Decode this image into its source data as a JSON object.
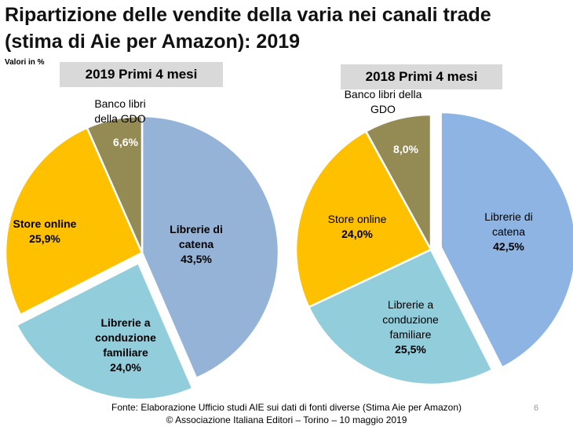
{
  "title_line1": "Ripartizione delle vendite della varia nei canali trade",
  "title_line2": "(stima di Aie per Amazon): 2019",
  "units_note": "Valori in %",
  "footer": {
    "source": "Fonte: Elaborazione Ufficio studi AIE sui dati di fonti diverse (Stima Aie per Amazon)",
    "copyright": "© Associazione Italiana Editori – Torino – 10 maggio 2019"
  },
  "page_number": "6",
  "chart_data": [
    {
      "type": "pie",
      "title": "2019 Primi 4 mesi",
      "slices": [
        {
          "label": "Librerie di catena",
          "value": 43.5,
          "value_label": "43,5%",
          "color": "#95b3d7"
        },
        {
          "label": "Librerie a conduzione familiare",
          "value": 24.0,
          "value_label": "24,0%",
          "color": "#92cddc",
          "exploded": true
        },
        {
          "label": "Store online",
          "value": 25.9,
          "value_label": "25,9%",
          "color": "#ffc000"
        },
        {
          "label": "Banco libri della GDO",
          "value": 6.6,
          "value_label": "6,6%",
          "color": "#948a54"
        }
      ]
    },
    {
      "type": "pie",
      "title": "2018 Primi 4 mesi",
      "slices": [
        {
          "label": "Librerie di catena",
          "value": 42.5,
          "value_label": "42,5%",
          "color": "#8db4e2",
          "exploded": true
        },
        {
          "label": "Librerie a conduzione familiare",
          "value": 25.5,
          "value_label": "25,5%",
          "color": "#92cddc"
        },
        {
          "label": "Store online",
          "value": 24.0,
          "value_label": "24,0%",
          "color": "#ffc000"
        },
        {
          "label": "Banco libri della GDO",
          "value": 8.0,
          "value_label": "8,0%",
          "color": "#948a54"
        }
      ]
    }
  ]
}
